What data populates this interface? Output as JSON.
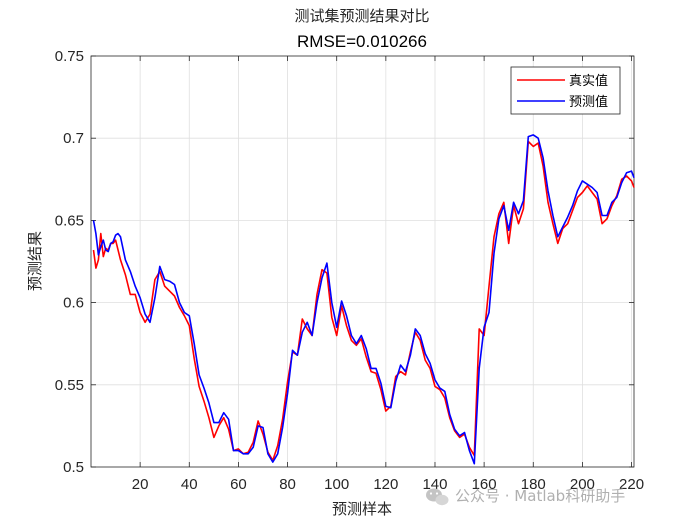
{
  "chart_data": {
    "type": "line",
    "title": "测试集预测结果对比",
    "subtitle": "RMSE=0.010266",
    "xlabel": "预测样本",
    "ylabel": "预测结果",
    "xlim": [
      0,
      221
    ],
    "ylim": [
      0.5,
      0.75
    ],
    "xticks": [
      20,
      40,
      60,
      80,
      100,
      120,
      140,
      160,
      180,
      200,
      220
    ],
    "yticks": [
      0.5,
      0.55,
      0.6,
      0.65,
      0.7,
      0.75
    ],
    "grid": true,
    "legend_position": "top-right",
    "series": [
      {
        "name": "真实值",
        "color": "#ff0000",
        "points": [
          [
            1,
            0.632
          ],
          [
            2,
            0.621
          ],
          [
            3,
            0.626
          ],
          [
            4,
            0.642
          ],
          [
            5,
            0.628
          ],
          [
            6,
            0.633
          ],
          [
            7,
            0.632
          ],
          [
            8,
            0.636
          ],
          [
            9,
            0.636
          ],
          [
            10,
            0.638
          ],
          [
            12,
            0.626
          ],
          [
            14,
            0.617
          ],
          [
            16,
            0.605
          ],
          [
            18,
            0.605
          ],
          [
            20,
            0.594
          ],
          [
            22,
            0.588
          ],
          [
            24,
            0.593
          ],
          [
            26,
            0.614
          ],
          [
            28,
            0.619
          ],
          [
            30,
            0.61
          ],
          [
            32,
            0.607
          ],
          [
            34,
            0.604
          ],
          [
            36,
            0.597
          ],
          [
            38,
            0.592
          ],
          [
            40,
            0.586
          ],
          [
            42,
            0.566
          ],
          [
            44,
            0.549
          ],
          [
            46,
            0.54
          ],
          [
            48,
            0.53
          ],
          [
            50,
            0.518
          ],
          [
            52,
            0.525
          ],
          [
            54,
            0.53
          ],
          [
            56,
            0.523
          ],
          [
            58,
            0.51
          ],
          [
            60,
            0.511
          ],
          [
            62,
            0.508
          ],
          [
            64,
            0.509
          ],
          [
            66,
            0.515
          ],
          [
            68,
            0.528
          ],
          [
            70,
            0.52
          ],
          [
            72,
            0.509
          ],
          [
            74,
            0.504
          ],
          [
            76,
            0.513
          ],
          [
            78,
            0.529
          ],
          [
            80,
            0.552
          ],
          [
            82,
            0.57
          ],
          [
            84,
            0.568
          ],
          [
            86,
            0.59
          ],
          [
            88,
            0.584
          ],
          [
            90,
            0.58
          ],
          [
            92,
            0.605
          ],
          [
            94,
            0.62
          ],
          [
            96,
            0.618
          ],
          [
            98,
            0.591
          ],
          [
            100,
            0.58
          ],
          [
            102,
            0.598
          ],
          [
            104,
            0.586
          ],
          [
            106,
            0.577
          ],
          [
            108,
            0.574
          ],
          [
            110,
            0.578
          ],
          [
            112,
            0.567
          ],
          [
            114,
            0.558
          ],
          [
            116,
            0.557
          ],
          [
            118,
            0.547
          ],
          [
            120,
            0.534
          ],
          [
            122,
            0.537
          ],
          [
            124,
            0.555
          ],
          [
            126,
            0.558
          ],
          [
            128,
            0.556
          ],
          [
            130,
            0.57
          ],
          [
            132,
            0.582
          ],
          [
            134,
            0.577
          ],
          [
            136,
            0.565
          ],
          [
            138,
            0.56
          ],
          [
            140,
            0.549
          ],
          [
            142,
            0.547
          ],
          [
            144,
            0.542
          ],
          [
            146,
            0.53
          ],
          [
            148,
            0.522
          ],
          [
            150,
            0.518
          ],
          [
            152,
            0.52
          ],
          [
            154,
            0.512
          ],
          [
            156,
            0.507
          ],
          [
            158,
            0.584
          ],
          [
            160,
            0.58
          ],
          [
            162,
            0.61
          ],
          [
            164,
            0.64
          ],
          [
            166,
            0.654
          ],
          [
            168,
            0.661
          ],
          [
            170,
            0.636
          ],
          [
            172,
            0.659
          ],
          [
            174,
            0.648
          ],
          [
            176,
            0.657
          ],
          [
            178,
            0.698
          ],
          [
            180,
            0.695
          ],
          [
            182,
            0.697
          ],
          [
            184,
            0.683
          ],
          [
            186,
            0.661
          ],
          [
            188,
            0.648
          ],
          [
            190,
            0.636
          ],
          [
            192,
            0.645
          ],
          [
            194,
            0.648
          ],
          [
            196,
            0.656
          ],
          [
            198,
            0.664
          ],
          [
            200,
            0.667
          ],
          [
            202,
            0.671
          ],
          [
            204,
            0.667
          ],
          [
            206,
            0.663
          ],
          [
            208,
            0.648
          ],
          [
            210,
            0.651
          ],
          [
            212,
            0.659
          ],
          [
            214,
            0.665
          ],
          [
            216,
            0.675
          ],
          [
            218,
            0.677
          ],
          [
            220,
            0.674
          ],
          [
            221,
            0.67
          ]
        ]
      },
      {
        "name": "预测值",
        "color": "#0000ff",
        "points": [
          [
            1,
            0.65
          ],
          [
            2,
            0.642
          ],
          [
            3,
            0.629
          ],
          [
            4,
            0.634
          ],
          [
            5,
            0.638
          ],
          [
            6,
            0.632
          ],
          [
            7,
            0.631
          ],
          [
            8,
            0.636
          ],
          [
            9,
            0.637
          ],
          [
            10,
            0.641
          ],
          [
            11,
            0.642
          ],
          [
            12,
            0.64
          ],
          [
            14,
            0.626
          ],
          [
            16,
            0.619
          ],
          [
            18,
            0.61
          ],
          [
            20,
            0.603
          ],
          [
            22,
            0.593
          ],
          [
            24,
            0.588
          ],
          [
            26,
            0.603
          ],
          [
            28,
            0.622
          ],
          [
            30,
            0.614
          ],
          [
            32,
            0.613
          ],
          [
            34,
            0.611
          ],
          [
            36,
            0.6
          ],
          [
            38,
            0.594
          ],
          [
            40,
            0.592
          ],
          [
            42,
            0.575
          ],
          [
            44,
            0.556
          ],
          [
            46,
            0.548
          ],
          [
            48,
            0.539
          ],
          [
            50,
            0.527
          ],
          [
            52,
            0.527
          ],
          [
            54,
            0.533
          ],
          [
            56,
            0.529
          ],
          [
            58,
            0.51
          ],
          [
            60,
            0.51
          ],
          [
            62,
            0.508
          ],
          [
            64,
            0.508
          ],
          [
            66,
            0.512
          ],
          [
            68,
            0.525
          ],
          [
            70,
            0.524
          ],
          [
            72,
            0.508
          ],
          [
            74,
            0.503
          ],
          [
            76,
            0.508
          ],
          [
            78,
            0.524
          ],
          [
            80,
            0.545
          ],
          [
            82,
            0.571
          ],
          [
            84,
            0.568
          ],
          [
            86,
            0.582
          ],
          [
            88,
            0.588
          ],
          [
            90,
            0.58
          ],
          [
            92,
            0.6
          ],
          [
            94,
            0.615
          ],
          [
            96,
            0.624
          ],
          [
            98,
            0.6
          ],
          [
            100,
            0.585
          ],
          [
            102,
            0.601
          ],
          [
            104,
            0.592
          ],
          [
            106,
            0.58
          ],
          [
            108,
            0.575
          ],
          [
            110,
            0.58
          ],
          [
            112,
            0.572
          ],
          [
            114,
            0.56
          ],
          [
            116,
            0.56
          ],
          [
            118,
            0.551
          ],
          [
            120,
            0.537
          ],
          [
            122,
            0.536
          ],
          [
            124,
            0.552
          ],
          [
            126,
            0.562
          ],
          [
            128,
            0.558
          ],
          [
            130,
            0.568
          ],
          [
            132,
            0.584
          ],
          [
            134,
            0.58
          ],
          [
            136,
            0.569
          ],
          [
            138,
            0.563
          ],
          [
            140,
            0.553
          ],
          [
            142,
            0.548
          ],
          [
            144,
            0.546
          ],
          [
            146,
            0.532
          ],
          [
            148,
            0.523
          ],
          [
            150,
            0.519
          ],
          [
            152,
            0.521
          ],
          [
            154,
            0.51
          ],
          [
            156,
            0.502
          ],
          [
            158,
            0.56
          ],
          [
            160,
            0.585
          ],
          [
            162,
            0.594
          ],
          [
            164,
            0.63
          ],
          [
            166,
            0.651
          ],
          [
            168,
            0.659
          ],
          [
            170,
            0.644
          ],
          [
            172,
            0.661
          ],
          [
            174,
            0.654
          ],
          [
            176,
            0.662
          ],
          [
            178,
            0.701
          ],
          [
            180,
            0.702
          ],
          [
            182,
            0.7
          ],
          [
            184,
            0.688
          ],
          [
            186,
            0.668
          ],
          [
            188,
            0.653
          ],
          [
            190,
            0.64
          ],
          [
            192,
            0.646
          ],
          [
            194,
            0.652
          ],
          [
            196,
            0.659
          ],
          [
            198,
            0.668
          ],
          [
            200,
            0.674
          ],
          [
            202,
            0.672
          ],
          [
            204,
            0.67
          ],
          [
            206,
            0.667
          ],
          [
            208,
            0.653
          ],
          [
            210,
            0.653
          ],
          [
            212,
            0.661
          ],
          [
            214,
            0.664
          ],
          [
            216,
            0.673
          ],
          [
            218,
            0.679
          ],
          [
            220,
            0.68
          ],
          [
            221,
            0.676
          ]
        ]
      }
    ]
  },
  "watermark": {
    "text": "公众号 · Matlab科研助手",
    "icon": "wechat-icon"
  }
}
